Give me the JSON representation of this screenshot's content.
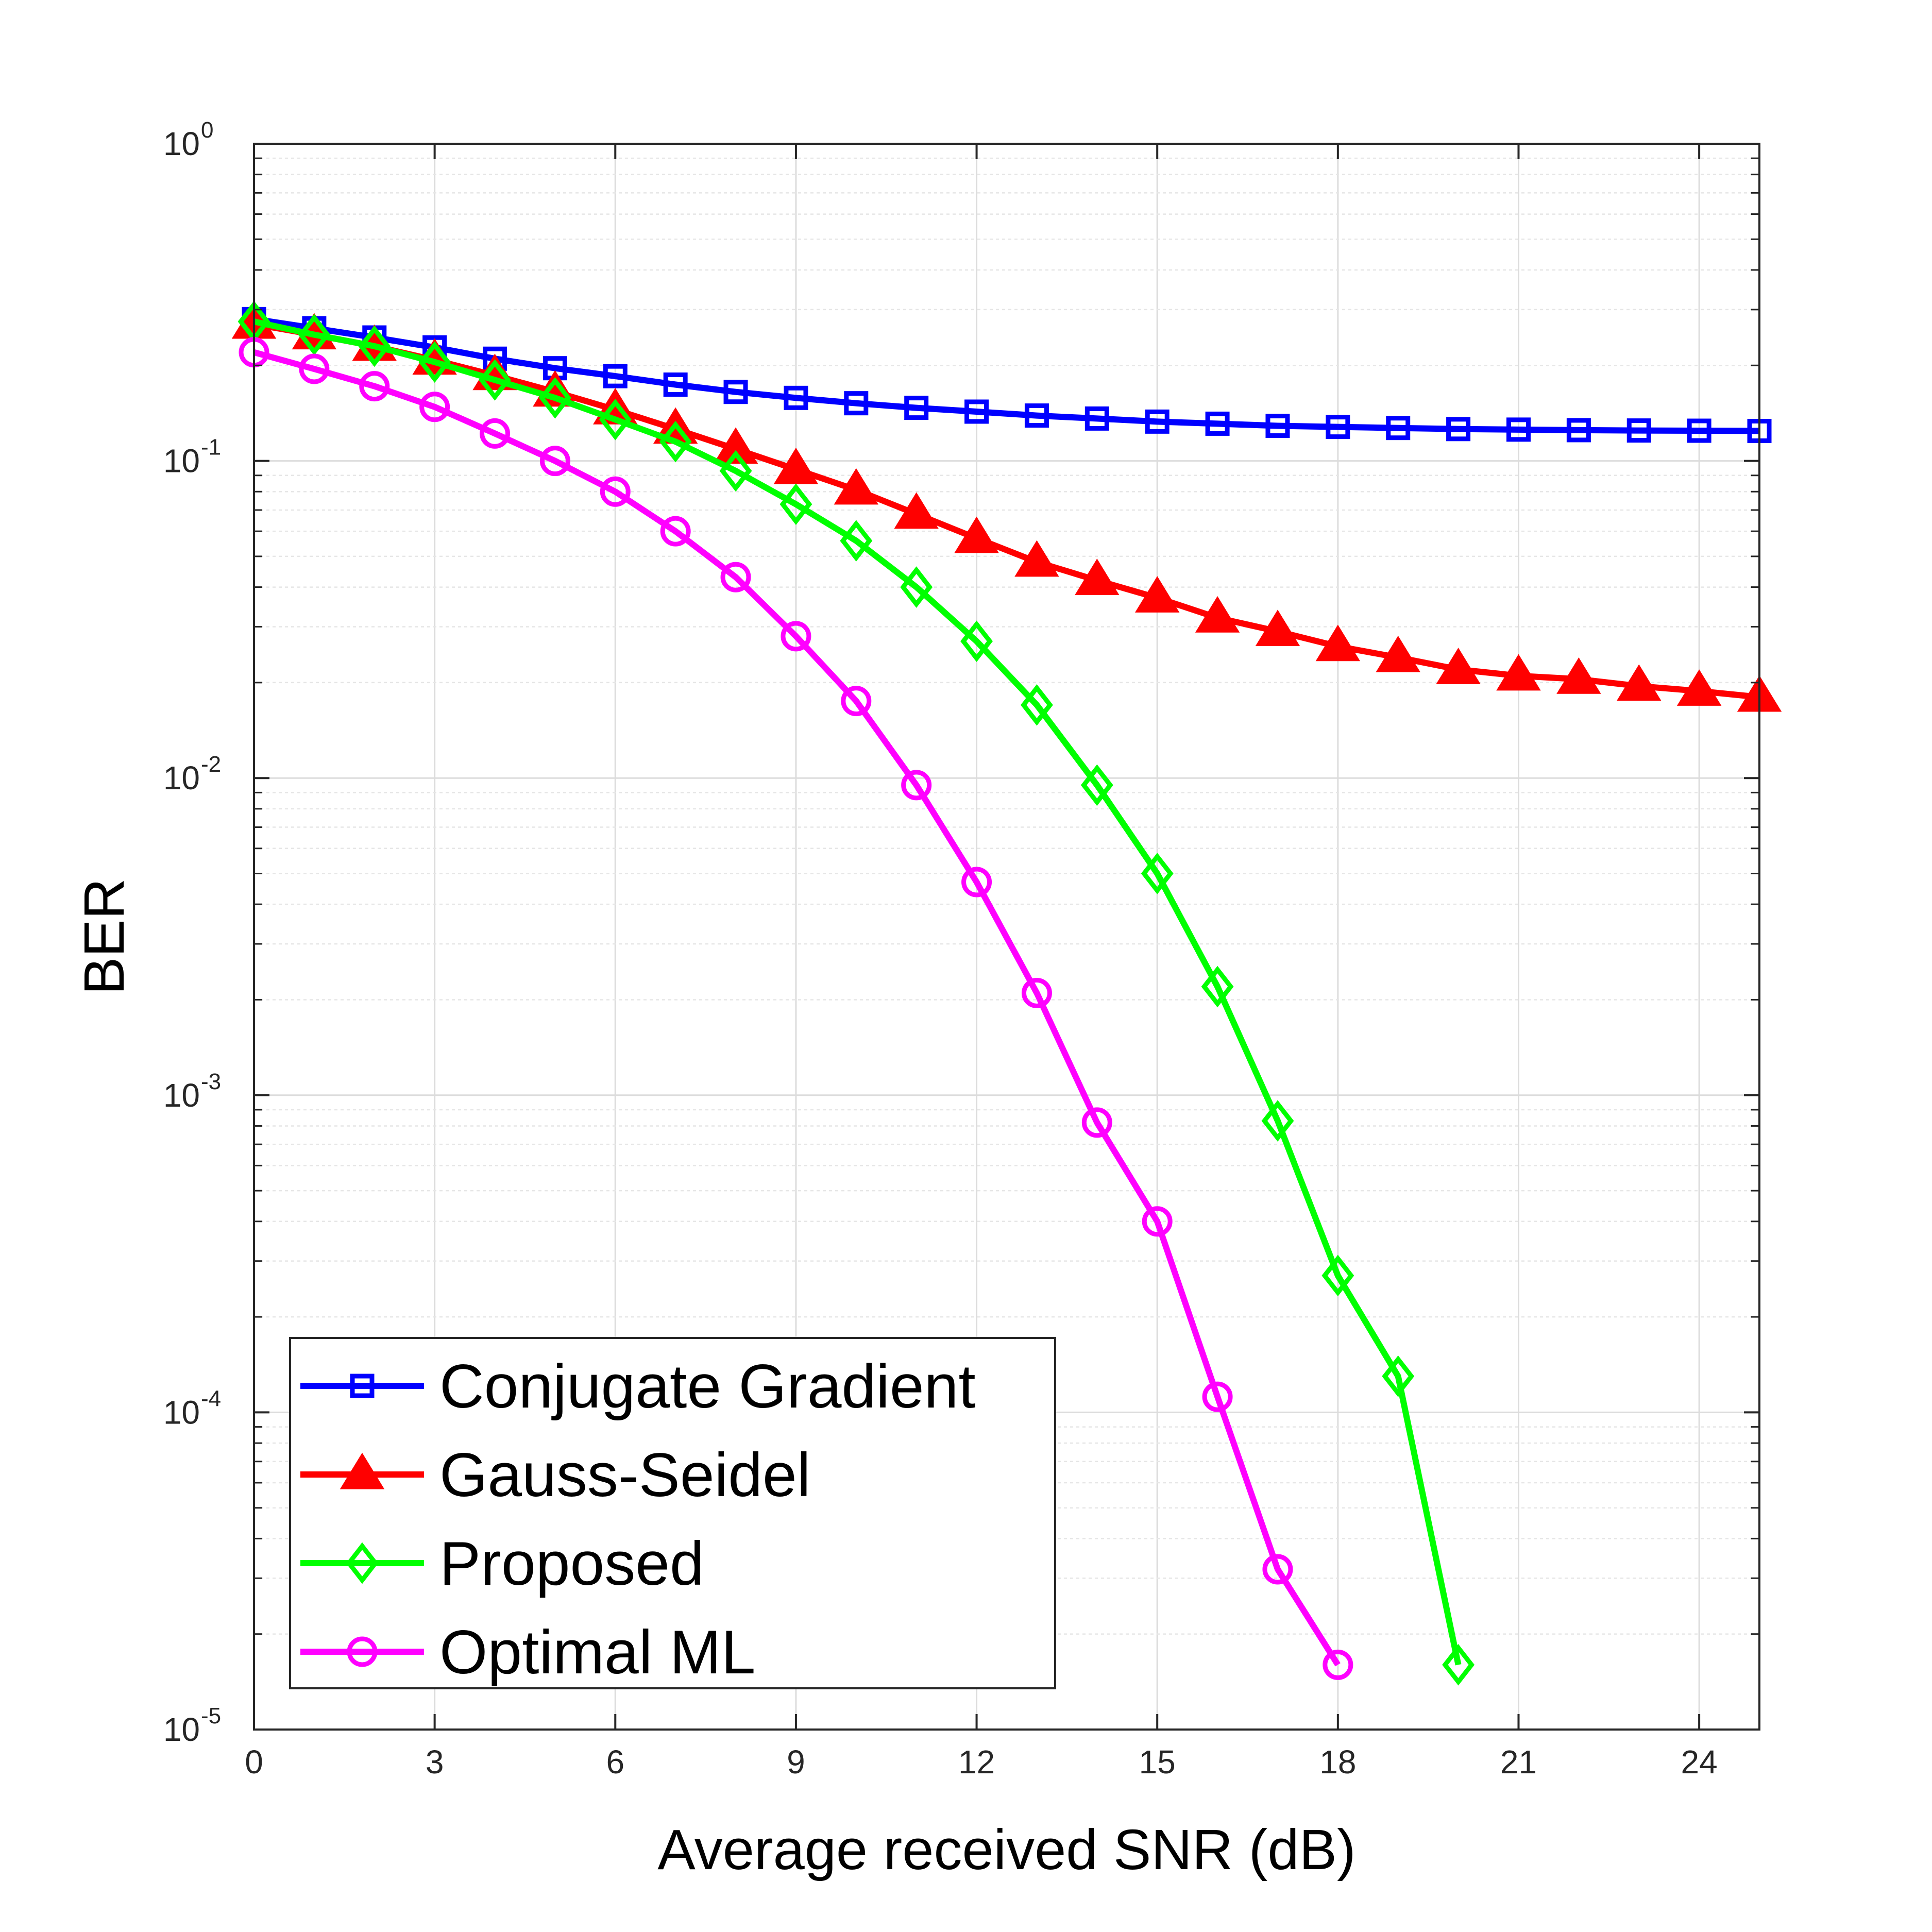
{
  "chart_data": {
    "type": "line",
    "title": "",
    "xlabel": "Average received SNR (dB)",
    "ylabel": "BER",
    "xlim": [
      0,
      25
    ],
    "ylim": [
      1e-05,
      1
    ],
    "yscale": "log",
    "grid": true,
    "xticks": [
      0,
      3,
      6,
      9,
      12,
      15,
      18,
      21,
      24
    ],
    "xtick_labels": [
      "0",
      "3",
      "6",
      "9",
      "12",
      "15",
      "18",
      "21",
      "24"
    ],
    "yticks": [
      {
        "base": "10",
        "exp": "0",
        "value": 1
      },
      {
        "base": "10",
        "exp": "-1",
        "value": 0.1
      },
      {
        "base": "10",
        "exp": "-2",
        "value": 0.01
      },
      {
        "base": "10",
        "exp": "-3",
        "value": 0.001
      },
      {
        "base": "10",
        "exp": "-4",
        "value": 0.0001
      },
      {
        "base": "10",
        "exp": "-5",
        "value": 1e-05
      }
    ],
    "legend_position": "bottom-left",
    "series": [
      {
        "name": "Conjugate Gradient",
        "color": "#0000ff",
        "marker": "square",
        "x": [
          0,
          1,
          2,
          3,
          4,
          5,
          6,
          7,
          8,
          9,
          10,
          11,
          12,
          13,
          14,
          15,
          16,
          17,
          18,
          19,
          20,
          21,
          22,
          23,
          24,
          25
        ],
        "y": [
          0.28,
          0.262,
          0.245,
          0.228,
          0.21,
          0.196,
          0.185,
          0.174,
          0.165,
          0.158,
          0.152,
          0.147,
          0.143,
          0.139,
          0.136,
          0.133,
          0.131,
          0.129,
          0.128,
          0.127,
          0.126,
          0.1255,
          0.125,
          0.1247,
          0.1245,
          0.1243
        ]
      },
      {
        "name": "Gauss-Seidel",
        "color": "#ff0000",
        "marker": "triangle",
        "x": [
          0,
          1,
          2,
          3,
          4,
          5,
          6,
          7,
          8,
          9,
          10,
          11,
          12,
          13,
          14,
          15,
          16,
          17,
          18,
          19,
          20,
          21,
          22,
          23,
          24,
          25
        ],
        "y": [
          0.27,
          0.25,
          0.23,
          0.208,
          0.186,
          0.165,
          0.145,
          0.126,
          0.109,
          0.094,
          0.081,
          0.068,
          0.057,
          0.048,
          0.042,
          0.037,
          0.032,
          0.029,
          0.026,
          0.024,
          0.022,
          0.021,
          0.0205,
          0.0195,
          0.0188,
          0.018
        ]
      },
      {
        "name": "Proposed",
        "color": "#00ff00",
        "marker": "diamond",
        "x": [
          0,
          1,
          2,
          3,
          4,
          5,
          6,
          7,
          8,
          9,
          10,
          11,
          12,
          13,
          14,
          15,
          16,
          17,
          18,
          19,
          20
        ],
        "y": [
          0.275,
          0.25,
          0.23,
          0.205,
          0.18,
          0.158,
          0.135,
          0.115,
          0.093,
          0.073,
          0.056,
          0.04,
          0.027,
          0.017,
          0.0095,
          0.005,
          0.0022,
          0.00083,
          0.00027,
          0.00013,
          1.6e-05
        ]
      },
      {
        "name": "Optimal ML",
        "color": "#ff00ff",
        "marker": "circle",
        "x": [
          0,
          1,
          2,
          3,
          4,
          5,
          6,
          7,
          8,
          9,
          10,
          11,
          12,
          13,
          14,
          15,
          16,
          17,
          18
        ],
        "y": [
          0.22,
          0.195,
          0.172,
          0.148,
          0.122,
          0.1,
          0.08,
          0.06,
          0.043,
          0.028,
          0.0175,
          0.0095,
          0.0047,
          0.0021,
          0.00082,
          0.0004,
          0.000112,
          3.2e-05,
          1.6e-05
        ]
      }
    ]
  }
}
